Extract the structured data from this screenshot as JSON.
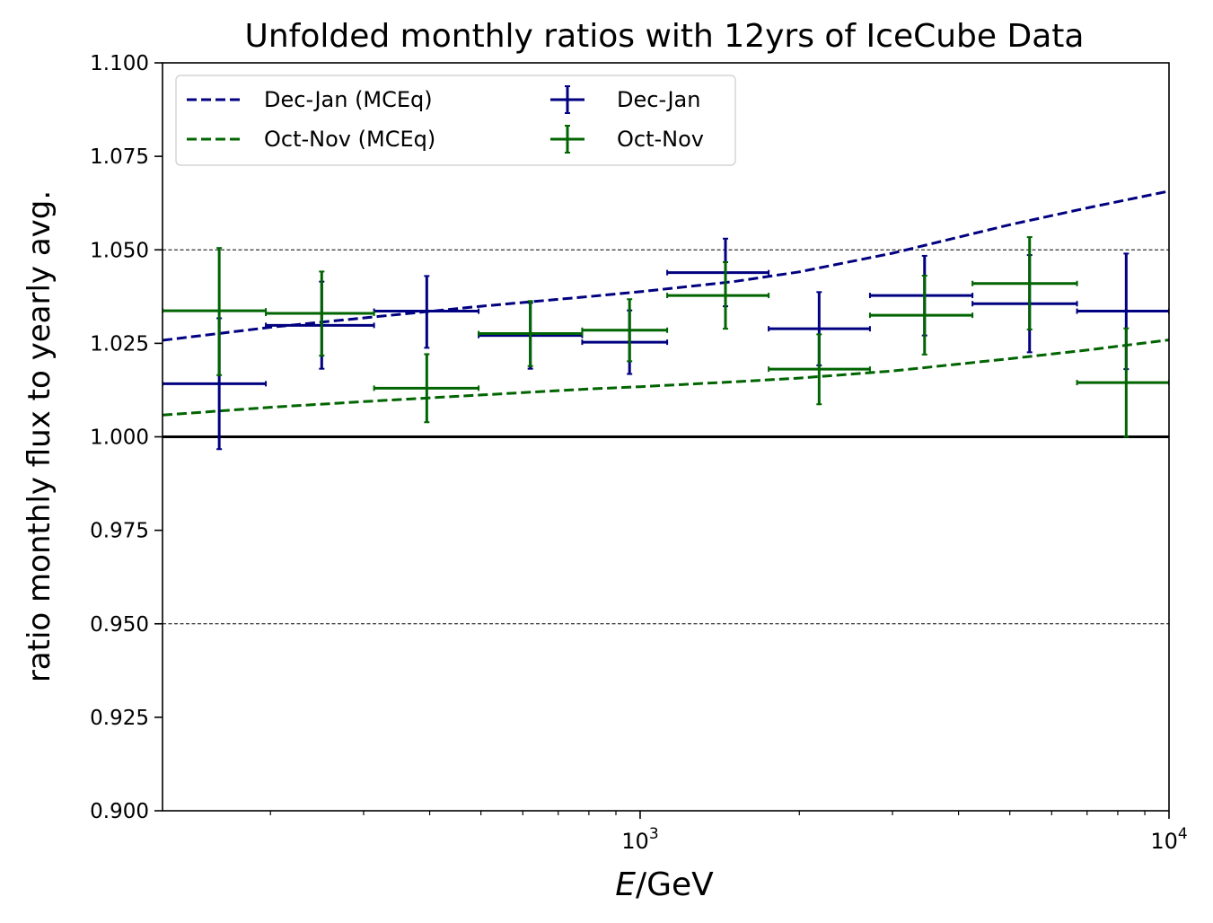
{
  "chart_data": {
    "type": "scatter",
    "title": "Unfolded monthly ratios with 12yrs of IceCube Data",
    "xlabel": "E/GeV",
    "ylabel": "ratio monthly flux to yearly avg.",
    "xscale": "log",
    "xlim": [
      125,
      10000
    ],
    "ylim": [
      0.9,
      1.1
    ],
    "x_ticks": [
      {
        "value": 1000,
        "label": "10",
        "exp": "3"
      },
      {
        "value": 10000,
        "label": "10",
        "exp": "4"
      }
    ],
    "y_ticks": [
      {
        "value": 0.9,
        "label": "0.900"
      },
      {
        "value": 0.925,
        "label": "0.925"
      },
      {
        "value": 0.95,
        "label": "0.950"
      },
      {
        "value": 0.975,
        "label": "0.975"
      },
      {
        "value": 1.0,
        "label": "1.000"
      },
      {
        "value": 1.025,
        "label": "1.025"
      },
      {
        "value": 1.05,
        "label": "1.050"
      },
      {
        "value": 1.075,
        "label": "1.075"
      },
      {
        "value": 1.1,
        "label": "1.100"
      }
    ],
    "hlines": [
      {
        "y": 1.05,
        "style": "dashed-thin"
      },
      {
        "y": 0.95,
        "style": "dashed-thin"
      },
      {
        "y": 1.0,
        "style": "solid-thick"
      }
    ],
    "grid": false,
    "legend": {
      "placement": "top-left",
      "columns": 2,
      "entries": [
        {
          "label": "Dec-Jan (MCEq)",
          "kind": "dashed-line",
          "color": "#000080"
        },
        {
          "label": "Oct-Nov (MCEq)",
          "kind": "dashed-line",
          "color": "#006400"
        },
        {
          "label": "Dec-Jan",
          "kind": "errorbar",
          "color": "#000080"
        },
        {
          "label": "Oct-Nov",
          "kind": "errorbar",
          "color": "#006400"
        }
      ]
    },
    "series": [
      {
        "name": "Dec-Jan (MCEq)",
        "kind": "line",
        "color": "#000080",
        "x": [
          125,
          200,
          300,
          500,
          800,
          1000,
          1500,
          2000,
          3000,
          5000,
          7000,
          10000
        ],
        "y": [
          1.0258,
          1.0293,
          1.0318,
          1.0349,
          1.0375,
          1.0388,
          1.0415,
          1.0441,
          1.0491,
          1.0567,
          1.0612,
          1.0657
        ]
      },
      {
        "name": "Oct-Nov (MCEq)",
        "kind": "line",
        "color": "#006400",
        "x": [
          125,
          200,
          300,
          500,
          800,
          1000,
          1500,
          2000,
          3000,
          5000,
          7000,
          10000
        ],
        "y": [
          1.0058,
          1.0079,
          1.0094,
          1.0112,
          1.0128,
          1.0134,
          1.0147,
          1.0157,
          1.0176,
          1.0209,
          1.0232,
          1.0259
        ]
      },
      {
        "name": "Dec-Jan",
        "kind": "errorbar",
        "color": "#000080",
        "points": [
          {
            "x": 160,
            "xlo": 125,
            "xhi": 196,
            "y": 1.0142,
            "ylo": 0.9967,
            "yhi": 1.0317
          },
          {
            "x": 250,
            "xlo": 196,
            "xhi": 314,
            "y": 1.0298,
            "ylo": 1.0182,
            "yhi": 1.0415
          },
          {
            "x": 395,
            "xlo": 314,
            "xhi": 495,
            "y": 1.0336,
            "ylo": 1.0238,
            "yhi": 1.043
          },
          {
            "x": 620,
            "xlo": 495,
            "xhi": 777,
            "y": 1.0271,
            "ylo": 1.0182,
            "yhi": 1.0358
          },
          {
            "x": 955,
            "xlo": 777,
            "xhi": 1125,
            "y": 1.0253,
            "ylo": 1.0168,
            "yhi": 1.0338
          },
          {
            "x": 1450,
            "xlo": 1125,
            "xhi": 1750,
            "y": 1.0439,
            "ylo": 1.0349,
            "yhi": 1.053
          },
          {
            "x": 2180,
            "xlo": 1750,
            "xhi": 2720,
            "y": 1.0289,
            "ylo": 1.0191,
            "yhi": 1.0387
          },
          {
            "x": 3450,
            "xlo": 2720,
            "xhi": 4250,
            "y": 1.0378,
            "ylo": 1.0271,
            "yhi": 1.0484
          },
          {
            "x": 5450,
            "xlo": 4250,
            "xhi": 6700,
            "y": 1.0356,
            "ylo": 1.0226,
            "yhi": 1.0486
          },
          {
            "x": 8300,
            "xlo": 6700,
            "xhi": 10000,
            "y": 1.0336,
            "ylo": 1.0181,
            "yhi": 1.049
          }
        ]
      },
      {
        "name": "Oct-Nov",
        "kind": "errorbar",
        "color": "#006400",
        "points": [
          {
            "x": 160,
            "xlo": 125,
            "xhi": 196,
            "y": 1.0337,
            "ylo": 1.0165,
            "yhi": 1.0505
          },
          {
            "x": 250,
            "xlo": 196,
            "xhi": 314,
            "y": 1.033,
            "ylo": 1.0217,
            "yhi": 1.0442
          },
          {
            "x": 395,
            "xlo": 314,
            "xhi": 495,
            "y": 1.013,
            "ylo": 1.0039,
            "yhi": 1.0221
          },
          {
            "x": 620,
            "xlo": 495,
            "xhi": 777,
            "y": 1.0276,
            "ylo": 1.0189,
            "yhi": 1.0363
          },
          {
            "x": 955,
            "xlo": 777,
            "xhi": 1125,
            "y": 1.0285,
            "ylo": 1.0202,
            "yhi": 1.0368
          },
          {
            "x": 1450,
            "xlo": 1125,
            "xhi": 1750,
            "y": 1.0378,
            "ylo": 1.0289,
            "yhi": 1.0467
          },
          {
            "x": 2180,
            "xlo": 1750,
            "xhi": 2720,
            "y": 1.0181,
            "ylo": 1.0087,
            "yhi": 1.0274
          },
          {
            "x": 3450,
            "xlo": 2720,
            "xhi": 4250,
            "y": 1.0325,
            "ylo": 1.022,
            "yhi": 1.0431
          },
          {
            "x": 5450,
            "xlo": 4250,
            "xhi": 6700,
            "y": 1.041,
            "ylo": 1.0287,
            "yhi": 1.0534
          },
          {
            "x": 8300,
            "xlo": 6700,
            "xhi": 10000,
            "y": 1.0145,
            "ylo": 1.0,
            "yhi": 1.029
          }
        ]
      }
    ]
  }
}
